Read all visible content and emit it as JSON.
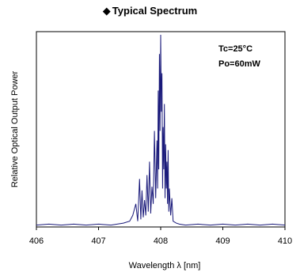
{
  "title_marker": "◆",
  "chart_data": {
    "type": "line",
    "title": "Typical Spectrum",
    "xlabel": "Wavelength λ [nm]",
    "ylabel": "Relative Optical Output Power",
    "xlim": [
      406,
      410
    ],
    "ylim": [
      0,
      1
    ],
    "xticks": [
      "406",
      "407",
      "408",
      "409",
      "410"
    ],
    "annotations": [
      "Tc=25°C",
      "Po=60mW"
    ],
    "line_color": "#1a1a7a",
    "grid": false,
    "series": [
      {
        "x": [
          406.0,
          406.2,
          406.4,
          406.6,
          406.8,
          407.0,
          407.2,
          407.4,
          407.5,
          407.55,
          407.6,
          407.63,
          407.66,
          407.68,
          407.7,
          407.72,
          407.74,
          407.76,
          407.78,
          407.8,
          407.82,
          407.84,
          407.86,
          407.88,
          407.9,
          407.92,
          407.94,
          407.95,
          407.96,
          407.97,
          407.98,
          407.99,
          408.0,
          408.01,
          408.02,
          408.03,
          408.04,
          408.05,
          408.06,
          408.07,
          408.08,
          408.09,
          408.1,
          408.11,
          408.12,
          408.13,
          408.14,
          408.16,
          408.18,
          408.2,
          408.25,
          408.3,
          408.4,
          408.6,
          408.8,
          409.0,
          409.2,
          409.4,
          409.6,
          409.8,
          410.0
        ],
        "y": [
          0.01,
          0.015,
          0.01,
          0.015,
          0.01,
          0.015,
          0.01,
          0.02,
          0.03,
          0.06,
          0.12,
          0.03,
          0.25,
          0.04,
          0.19,
          0.05,
          0.14,
          0.06,
          0.27,
          0.08,
          0.34,
          0.07,
          0.21,
          0.12,
          0.5,
          0.15,
          0.45,
          0.2,
          0.71,
          0.3,
          0.9,
          0.5,
          1.0,
          0.6,
          0.8,
          0.2,
          0.52,
          0.3,
          0.64,
          0.15,
          0.43,
          0.2,
          0.34,
          0.12,
          0.4,
          0.08,
          0.2,
          0.06,
          0.15,
          0.03,
          0.02,
          0.015,
          0.01,
          0.015,
          0.01,
          0.015,
          0.01,
          0.015,
          0.01,
          0.015,
          0.01
        ]
      }
    ]
  }
}
